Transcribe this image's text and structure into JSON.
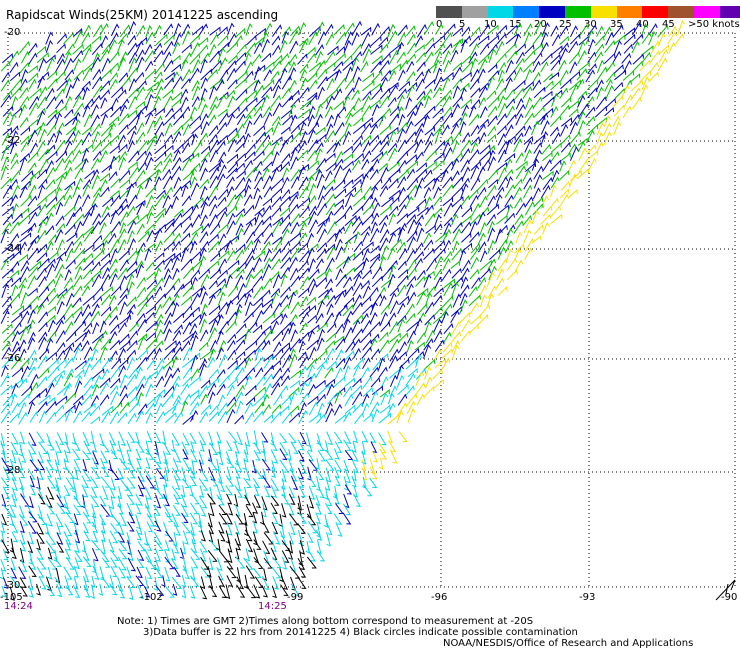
{
  "title": "Rapidscat Winds(25KM) 20141225 ascending",
  "legend": {
    "labels": [
      "0",
      "5",
      "10",
      "15",
      "20",
      "25",
      "30",
      "35",
      "40",
      "45",
      ">50 knots"
    ],
    "colors": [
      "#505050",
      "#a0a0a0",
      "#00d8e8",
      "#0080ff",
      "#0000c0",
      "#00c000",
      "#f8e000",
      "#ff8000",
      "#ff0000",
      "#a0522d",
      "#ff00ff",
      "#6000b0"
    ]
  },
  "lat_labels": [
    "-20",
    "-22",
    "-24",
    "-26",
    "-28",
    "-30"
  ],
  "lon_labels": [
    "-105",
    "-102",
    "-99",
    "-96",
    "-93",
    "-90"
  ],
  "times": [
    "14:24",
    "14:25"
  ],
  "notes": {
    "line1": "Note: 1) Times are GMT 2)Times along bottom correspond to measurement at -20S",
    "line2": "3)Data buffer is 22 hrs from 20141225 4) Black circles indicate possible contamination",
    "credit": "NOAA/NESDIS/Office of Research and Applications"
  },
  "map": {
    "lon_range": [
      -105,
      -90
    ],
    "lat_range": [
      -30,
      -20
    ],
    "grid": true,
    "colors": {
      "black": "#000000",
      "cyan": "#00d8e8",
      "blue": "#0000c0",
      "green": "#00c000",
      "yellow": "#f8e000"
    }
  }
}
